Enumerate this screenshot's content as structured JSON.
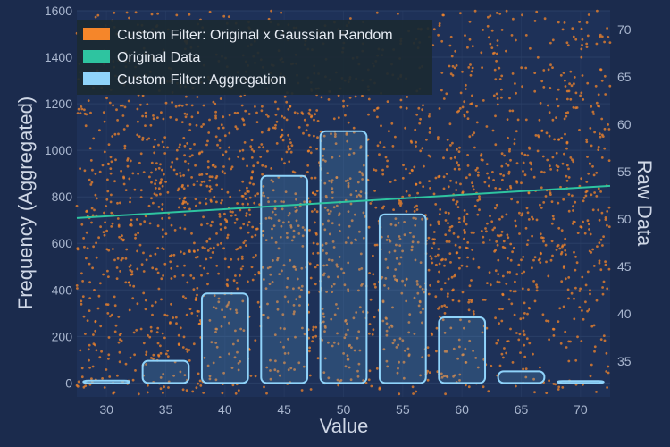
{
  "chart_data": {
    "type": "bar",
    "title": "",
    "xlabel": "Value",
    "ylabel": "Frequency (Aggregated)",
    "y2label": "Raw Data",
    "xlim": [
      27.5,
      72.5
    ],
    "ylim": [
      -60,
      1600
    ],
    "y2lim": [
      31.2,
      72
    ],
    "x_ticks": [
      30,
      35,
      40,
      45,
      50,
      55,
      60,
      65,
      70
    ],
    "y_ticks": [
      0,
      200,
      400,
      600,
      800,
      1000,
      1200,
      1400,
      1600
    ],
    "y2_ticks": [
      35,
      40,
      45,
      50,
      55,
      60,
      65,
      70
    ],
    "legend_position": "top-left",
    "series": [
      {
        "name": "Custom Filter: Original x Gaussian Random",
        "kind": "scatter",
        "color": "#f5862a",
        "count": 2600,
        "seed": 7,
        "x_range": [
          27.5,
          72.5
        ],
        "y_range": [
          31.5,
          72
        ]
      },
      {
        "name": "Original Data",
        "kind": "line",
        "color": "#2ec4a0",
        "x": [
          27.5,
          72.5
        ],
        "y": [
          50.1,
          53.5
        ]
      },
      {
        "name": "Custom Filter: Aggregation",
        "kind": "bar",
        "color": "#8fd3fa",
        "categories": [
          30,
          35,
          40,
          45,
          50,
          55,
          60,
          65,
          70
        ],
        "values": [
          10,
          95,
          385,
          890,
          1082,
          725,
          282,
          50,
          8
        ]
      }
    ],
    "colors": {
      "background": "#1b2b4d",
      "plot_background": "#1e3158",
      "gridline": "#2a3f66"
    }
  }
}
